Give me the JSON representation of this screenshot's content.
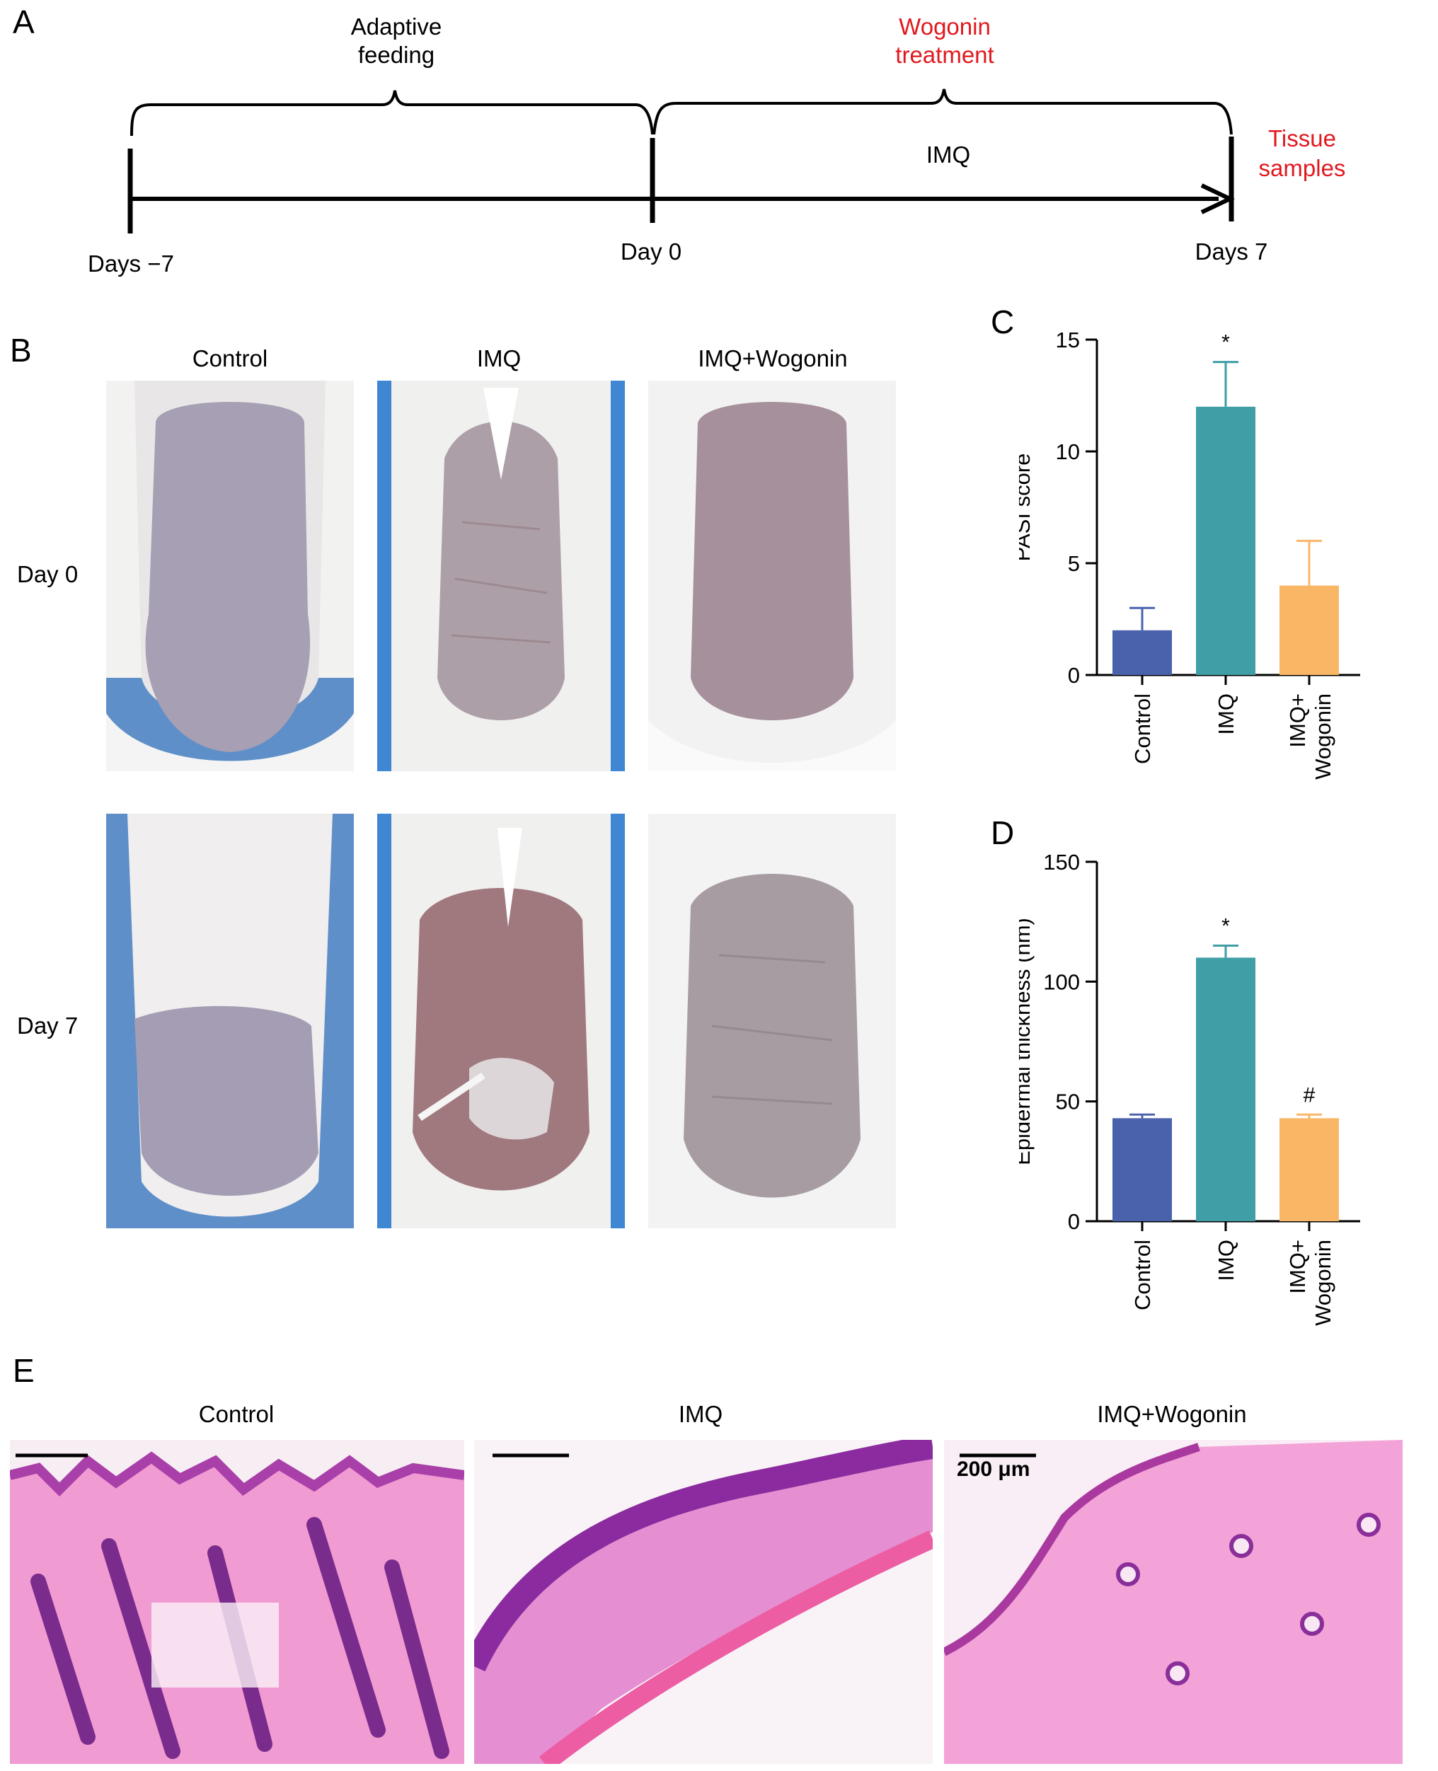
{
  "panels": {
    "a": "A",
    "b": "B",
    "c": "C",
    "d": "D",
    "e": "E"
  },
  "timeline": {
    "adaptive": "Adaptive\nfeeding",
    "wogonin": "Wogonin\ntreatment",
    "imq": "IMQ",
    "tissue": "Tissue\nsamples",
    "day_start": "Days −7",
    "day_zero": "Day 0",
    "day_end": "Days 7",
    "accent": "#e0191f"
  },
  "photos": {
    "columns": [
      "Control",
      "IMQ",
      "IMQ+Wogonin"
    ],
    "rows": [
      "Day 0",
      "Day 7"
    ]
  },
  "histology": {
    "columns": [
      "Control",
      "IMQ",
      "IMQ+Wogonin"
    ],
    "scale_label": "200 μm"
  },
  "chart_data": [
    {
      "type": "bar",
      "title": "",
      "ylabel": "PASI score",
      "categories": [
        "Control",
        "IMQ",
        "IMQ+\nWogonin"
      ],
      "values": [
        2,
        12,
        4
      ],
      "errors": [
        1,
        2,
        2
      ],
      "annotations": [
        "",
        "*",
        ""
      ],
      "ylim": [
        0,
        15
      ],
      "yticks": [
        0,
        5,
        10,
        15
      ],
      "colors": [
        "#4a62ac",
        "#3f9ea6",
        "#f9b766"
      ]
    },
    {
      "type": "bar",
      "title": "",
      "ylabel": "Epidermal thickness (nm)",
      "categories": [
        "Control",
        "IMQ",
        "IMQ+\nWogonin"
      ],
      "values": [
        43,
        110,
        43
      ],
      "errors": [
        1.5,
        5,
        1.5
      ],
      "annotations": [
        "",
        "*",
        "#"
      ],
      "ylim": [
        0,
        150
      ],
      "yticks": [
        0,
        50,
        100,
        150
      ],
      "colors": [
        "#4a62ac",
        "#3f9ea6",
        "#f9b766"
      ]
    }
  ]
}
